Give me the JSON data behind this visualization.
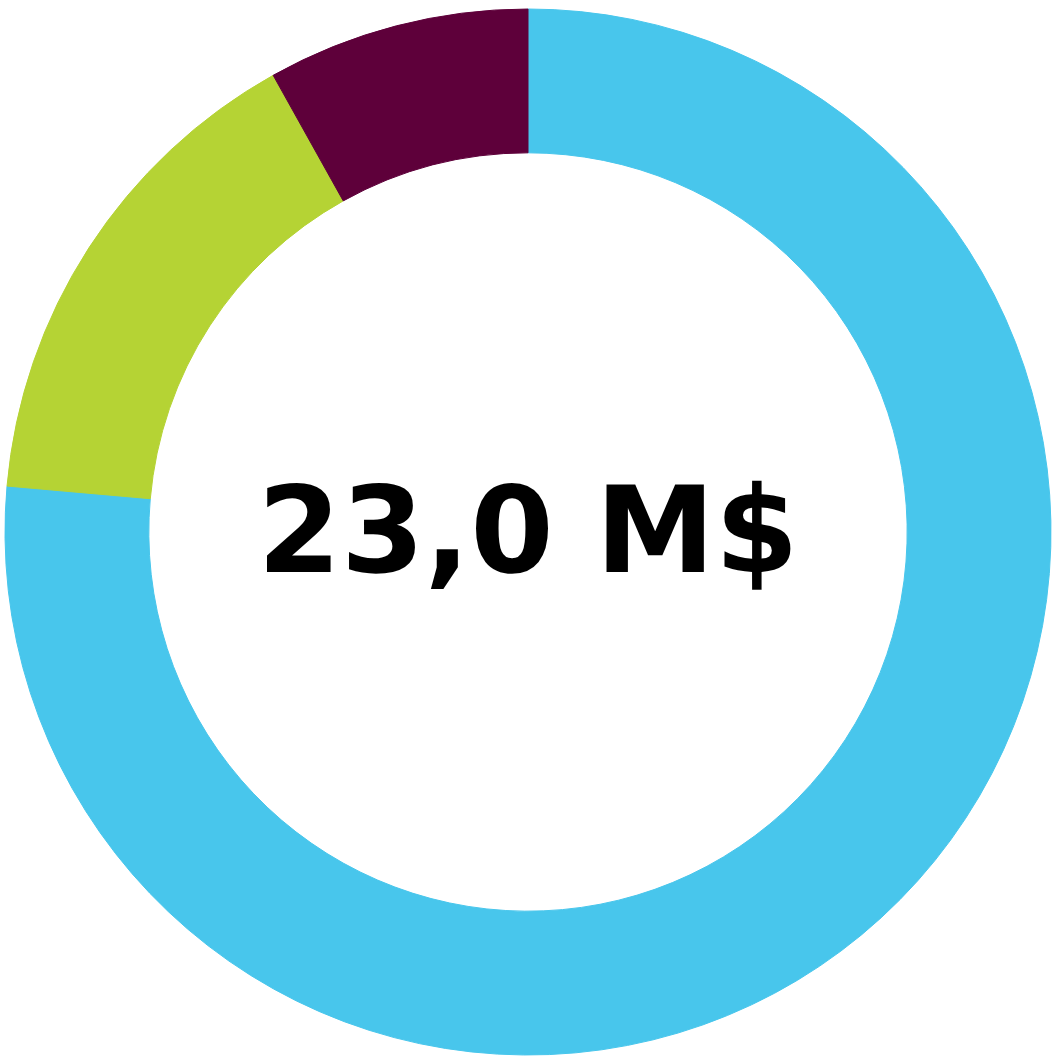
{
  "chart_data": {
    "type": "donut",
    "categories": [
      null,
      null,
      null
    ],
    "values": [
      76.4,
      15.5,
      8.1
    ],
    "colors": [
      "#48c6ec",
      "#b5d334",
      "#5e003a"
    ],
    "annotations": [
      "23,0 M$"
    ]
  }
}
